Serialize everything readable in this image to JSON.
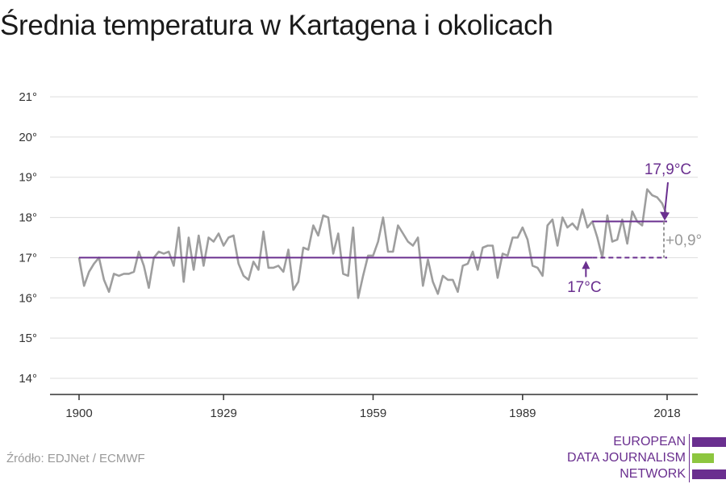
{
  "title": "Średnia temperatura w Kartagena i okolicach",
  "source": "Źródło: EDJNet / ECMWF",
  "logo": {
    "lines": [
      "EUROPEAN",
      "DATA JOURNALISM",
      "NETWORK"
    ],
    "colors": [
      "#6a2f8f",
      "#8dc63f",
      "#6a2f8f"
    ]
  },
  "colors": {
    "series": "#9e9e9e",
    "accent": "#6a2f8f",
    "grid": "#dddddd",
    "axis": "#333333"
  },
  "chart_data": {
    "type": "line",
    "title": "Średnia temperatura w Kartagena i okolicach",
    "xlabel": "",
    "ylabel": "",
    "xlim": [
      1900,
      2018
    ],
    "ylim": [
      14,
      21
    ],
    "x_ticks": [
      1900,
      1929,
      1959,
      1989,
      2018
    ],
    "y_ticks": [
      14,
      15,
      16,
      17,
      18,
      19,
      20,
      21
    ],
    "y_tick_suffix": "°",
    "grid": true,
    "series": [
      {
        "x": [
          1900,
          1901,
          1902,
          1903,
          1904,
          1905,
          1906,
          1907,
          1908,
          1909,
          1910,
          1911,
          1912,
          1913,
          1914,
          1915,
          1916,
          1917,
          1918,
          1919,
          1920,
          1921,
          1922,
          1923,
          1924,
          1925,
          1926,
          1927,
          1928,
          1929,
          1930,
          1931,
          1932,
          1933,
          1934,
          1935,
          1936,
          1937,
          1938,
          1939,
          1940,
          1941,
          1942,
          1943,
          1944,
          1945,
          1946,
          1947,
          1948,
          1949,
          1950,
          1951,
          1952,
          1953,
          1954,
          1955,
          1956,
          1957,
          1958,
          1959,
          1960,
          1961,
          1962,
          1963,
          1964,
          1965,
          1966,
          1967,
          1968,
          1969,
          1970,
          1971,
          1972,
          1973,
          1974,
          1975,
          1976,
          1977,
          1978,
          1979,
          1980,
          1981,
          1982,
          1983,
          1984,
          1985,
          1986,
          1987,
          1988,
          1989,
          1990,
          1991,
          1992,
          1993,
          1994,
          1995,
          1996,
          1997,
          1998,
          1999,
          2000,
          2001,
          2002,
          2003,
          2004,
          2005,
          2006,
          2007,
          2008,
          2009,
          2010,
          2011,
          2012,
          2013,
          2014,
          2015,
          2016,
          2017,
          2018
        ],
        "values": [
          17.0,
          16.3,
          16.65,
          16.85,
          17.0,
          16.45,
          16.15,
          16.6,
          16.55,
          16.6,
          16.6,
          16.65,
          17.15,
          16.8,
          16.25,
          17.0,
          17.15,
          17.1,
          17.15,
          16.8,
          17.75,
          16.4,
          17.5,
          16.7,
          17.55,
          16.8,
          17.5,
          17.4,
          17.6,
          17.3,
          17.5,
          17.55,
          16.85,
          16.55,
          16.45,
          16.9,
          16.7,
          17.65,
          16.75,
          16.75,
          16.8,
          16.65,
          17.2,
          16.2,
          16.4,
          17.25,
          17.2,
          17.8,
          17.55,
          18.05,
          18.0,
          17.1,
          17.6,
          16.6,
          16.55,
          17.75,
          16.0,
          16.55,
          17.05,
          17.05,
          17.4,
          18.0,
          17.15,
          17.15,
          17.8,
          17.6,
          17.4,
          17.3,
          17.5,
          16.3,
          16.95,
          16.4,
          16.1,
          16.55,
          16.45,
          16.45,
          16.15,
          16.8,
          16.85,
          17.15,
          16.7,
          17.25,
          17.3,
          17.3,
          16.5,
          17.1,
          17.05,
          17.5,
          17.5,
          17.75,
          17.45,
          16.8,
          16.75,
          16.55,
          17.8,
          17.95,
          17.3,
          18.0,
          17.75,
          17.85,
          17.7,
          18.2,
          17.75,
          17.9,
          17.5,
          17.0,
          18.05,
          17.4,
          17.45,
          17.95,
          17.35,
          18.15,
          17.9,
          17.8,
          18.7,
          18.55,
          18.5,
          18.35,
          18.05
        ]
      }
    ],
    "reference_lines": [
      {
        "label": "17°C",
        "value": 17.0,
        "from": 1900,
        "to": 2003,
        "dashed_to": 2018
      },
      {
        "label": "17,9°C",
        "value": 17.9,
        "from": 2003,
        "to": 2018
      }
    ],
    "annotations": [
      {
        "text": "17,9°C",
        "year": 2018
      },
      {
        "text": "17°C",
        "year": 2003
      },
      {
        "text": "+0,9°",
        "year": 2018
      }
    ]
  }
}
